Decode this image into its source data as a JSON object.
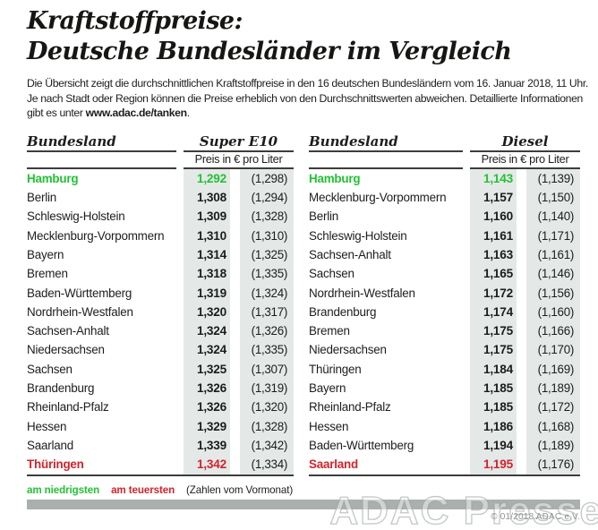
{
  "header": {
    "title_line1": "Kraftstoffpreise:",
    "title_line2": "Deutsche Bundesländer im Vergleich",
    "intro_text": "Die Übersicht zeigt die durchschnittlichen Kraftstoffpreise in den 16 deutschen Bundesländern vom 16. Januar 2018, 11 Uhr. Je nach Stadt oder Region können die Preise erheblich von den Durchschnittswerten abweichen. Detaillierte Informationen gibt es unter ",
    "intro_link": "www.adac.de/tanken",
    "intro_suffix": "."
  },
  "legend": {
    "lowest_label": "am niedrigsten",
    "highest_label": "am teuersten",
    "note": "(Zahlen vom Vormonat)"
  },
  "footer": {
    "copyright": "© 01/2018 ADAC e.V.",
    "watermark": "ADAC Presse"
  },
  "colors": {
    "lowest_green": "#22c233",
    "highest_red": "#d2232c",
    "price_column_bg": "#e4e9e8",
    "divider_bar": "#a9b0ae",
    "rule": "#3e3d3b"
  },
  "chart_data": [
    {
      "type": "table",
      "title": "Super E10",
      "state_column_header": "Bundesland",
      "price_column_header": "Preis in € pro Liter",
      "rows": [
        {
          "state": "Hamburg",
          "price": "1,292",
          "previous": "(1,298)",
          "highlight": "lowest"
        },
        {
          "state": "Berlin",
          "price": "1,308",
          "previous": "(1,294)",
          "highlight": null
        },
        {
          "state": "Schleswig-Holstein",
          "price": "1,309",
          "previous": "(1,328)",
          "highlight": null
        },
        {
          "state": "Mecklenburg-Vorpommern",
          "price": "1,310",
          "previous": "(1,310)",
          "highlight": null
        },
        {
          "state": "Bayern",
          "price": "1,314",
          "previous": "(1,325)",
          "highlight": null
        },
        {
          "state": "Bremen",
          "price": "1,318",
          "previous": "(1,335)",
          "highlight": null
        },
        {
          "state": "Baden-Württemberg",
          "price": "1,319",
          "previous": "(1,324)",
          "highlight": null
        },
        {
          "state": "Nordrhein-Westfalen",
          "price": "1,320",
          "previous": "(1,317)",
          "highlight": null
        },
        {
          "state": "Sachsen-Anhalt",
          "price": "1,324",
          "previous": "(1,326)",
          "highlight": null
        },
        {
          "state": "Niedersachsen",
          "price": "1,324",
          "previous": "(1,335)",
          "highlight": null
        },
        {
          "state": "Sachsen",
          "price": "1,325",
          "previous": "(1,307)",
          "highlight": null
        },
        {
          "state": "Brandenburg",
          "price": "1,326",
          "previous": "(1,319)",
          "highlight": null
        },
        {
          "state": "Rheinland-Pfalz",
          "price": "1,326",
          "previous": "(1,320)",
          "highlight": null
        },
        {
          "state": "Hessen",
          "price": "1,329",
          "previous": "(1,328)",
          "highlight": null
        },
        {
          "state": "Saarland",
          "price": "1,339",
          "previous": "(1,342)",
          "highlight": null
        },
        {
          "state": "Thüringen",
          "price": "1,342",
          "previous": "(1,334)",
          "highlight": "highest"
        }
      ]
    },
    {
      "type": "table",
      "title": "Diesel",
      "state_column_header": "Bundesland",
      "price_column_header": "Preis in € pro Liter",
      "rows": [
        {
          "state": "Hamburg",
          "price": "1,143",
          "previous": "(1,139)",
          "highlight": "lowest"
        },
        {
          "state": "Mecklenburg-Vorpommern",
          "price": "1,157",
          "previous": "(1,150)",
          "highlight": null
        },
        {
          "state": "Berlin",
          "price": "1,160",
          "previous": "(1,140)",
          "highlight": null
        },
        {
          "state": "Schleswig-Holstein",
          "price": "1,161",
          "previous": "(1,171)",
          "highlight": null
        },
        {
          "state": "Sachsen-Anhalt",
          "price": "1,163",
          "previous": "(1,161)",
          "highlight": null
        },
        {
          "state": "Sachsen",
          "price": "1,165",
          "previous": "(1,146)",
          "highlight": null
        },
        {
          "state": "Nordrhein-Westfalen",
          "price": "1,172",
          "previous": "(1,156)",
          "highlight": null
        },
        {
          "state": "Brandenburg",
          "price": "1,174",
          "previous": "(1,160)",
          "highlight": null
        },
        {
          "state": "Bremen",
          "price": "1,175",
          "previous": "(1,166)",
          "highlight": null
        },
        {
          "state": "Niedersachsen",
          "price": "1,175",
          "previous": "(1,170)",
          "highlight": null
        },
        {
          "state": "Thüringen",
          "price": "1,184",
          "previous": "(1,169)",
          "highlight": null
        },
        {
          "state": "Bayern",
          "price": "1,185",
          "previous": "(1,189)",
          "highlight": null
        },
        {
          "state": "Rheinland-Pfalz",
          "price": "1,185",
          "previous": "(1,172)",
          "highlight": null
        },
        {
          "state": "Hessen",
          "price": "1,186",
          "previous": "(1,168)",
          "highlight": null
        },
        {
          "state": "Baden-Württemberg",
          "price": "1,194",
          "previous": "(1,189)",
          "highlight": null
        },
        {
          "state": "Saarland",
          "price": "1,195",
          "previous": "(1,176)",
          "highlight": "highest"
        }
      ]
    }
  ]
}
